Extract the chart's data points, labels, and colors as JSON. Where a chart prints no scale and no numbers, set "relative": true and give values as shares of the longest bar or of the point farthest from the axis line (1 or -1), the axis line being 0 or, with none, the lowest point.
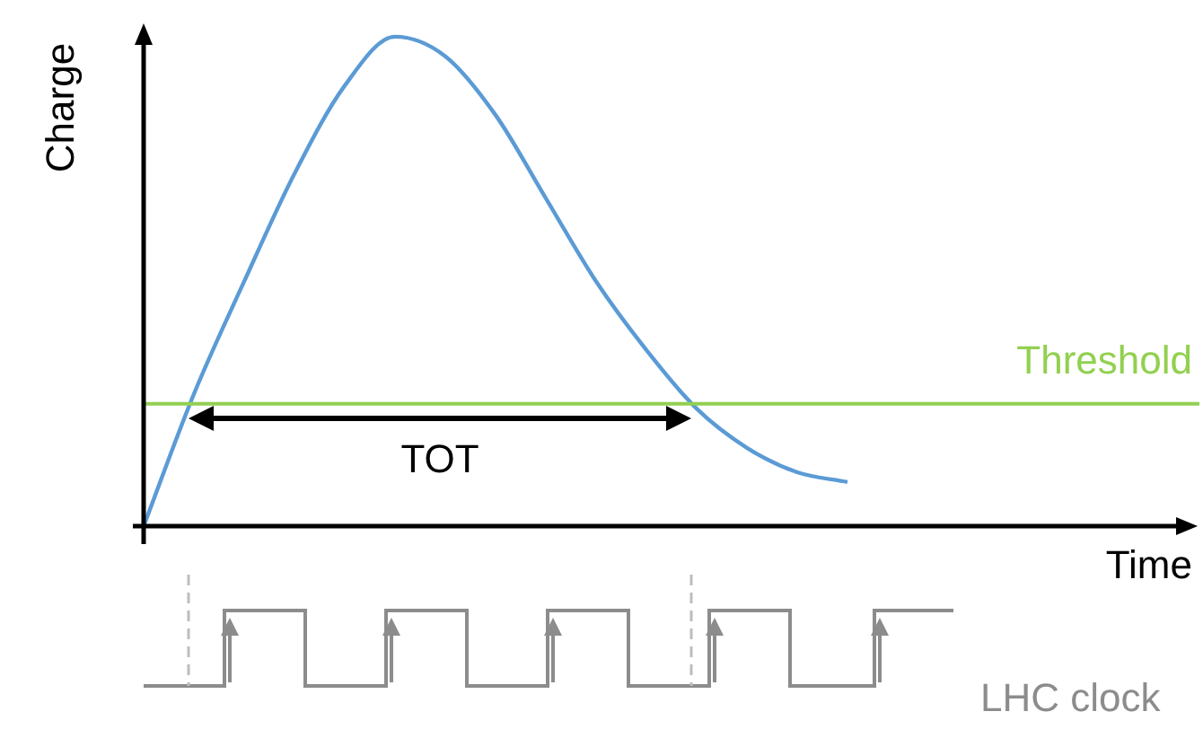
{
  "chart_data": {
    "type": "line",
    "relative": true,
    "xlabel": "Time",
    "ylabel": "Charge",
    "categories": [
      null,
      null,
      null,
      null,
      null,
      null,
      null,
      null,
      null,
      null,
      null,
      null,
      null,
      null,
      null,
      null,
      null,
      null,
      null,
      null,
      null,
      null
    ],
    "series": [
      {
        "color": "#5b9bd5",
        "values": [
          0,
          0.27,
          0.5,
          0.72,
          0.9,
          1,
          0.96,
          0.84,
          0.67,
          0.5,
          0.36,
          0.24,
          0.16,
          0.11,
          0.09,
          null,
          null,
          null,
          null,
          null,
          null,
          null
        ]
      }
    ],
    "ref_lines": [
      {
        "axis": "y",
        "value": 0.25,
        "label": "Threshold",
        "color": "#92d050"
      }
    ],
    "annotations": [
      "TOT",
      "LHC clock"
    ],
    "marker": "none",
    "line_style": "solid"
  }
}
